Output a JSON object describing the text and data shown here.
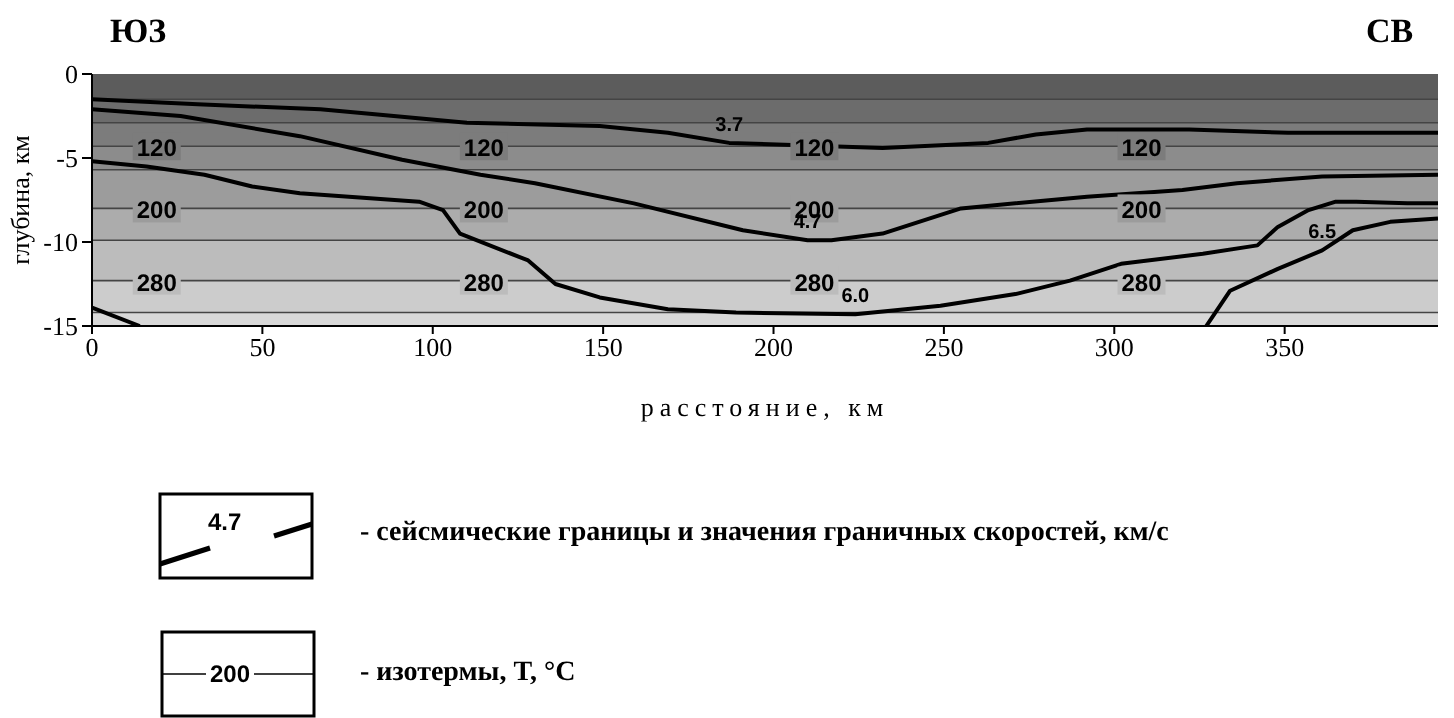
{
  "chart_data": {
    "type": "line",
    "xlabel": "расстояние, км",
    "ylabel": "глубина, км",
    "xlim": [
      0,
      395
    ],
    "ylim": [
      -15,
      0
    ],
    "xticks": [
      0,
      50,
      100,
      150,
      200,
      250,
      300,
      350
    ],
    "yticks": [
      -15,
      -10,
      -5,
      0
    ],
    "legend": "bottom",
    "marker": "none",
    "line_style": "solid",
    "series": [
      {
        "name": "3.7",
        "color": "#000000",
        "x": [
          0,
          31,
          67,
          83,
          110,
          149,
          169,
          187,
          232,
          263,
          277,
          292,
          322,
          351,
          395
        ],
        "values": [
          -1.5,
          -1.8,
          -2.1,
          -2.4,
          -2.9,
          -3.1,
          -3.5,
          -4.1,
          -4.4,
          -4.1,
          -3.6,
          -3.3,
          -3.3,
          -3.5,
          -3.5
        ]
      },
      {
        "name": "4.7",
        "color": "#000000",
        "x": [
          0,
          26,
          61,
          91,
          114,
          130,
          159,
          191,
          210,
          217,
          232,
          255,
          292,
          320,
          336,
          361,
          395
        ],
        "values": [
          -2.1,
          -2.5,
          -3.7,
          -5.1,
          -6.0,
          -6.5,
          -7.7,
          -9.3,
          -9.9,
          -9.9,
          -9.5,
          -8.0,
          -7.3,
          -6.9,
          -6.5,
          -6.1,
          -6.0
        ]
      },
      {
        "name": "6.0",
        "color": "#000000",
        "x": [
          0,
          16,
          33,
          47,
          61,
          96,
          103,
          108,
          128,
          136,
          149,
          169,
          189,
          224,
          249,
          271,
          287,
          302,
          326,
          342,
          348,
          357,
          365,
          371,
          386,
          395
        ],
        "values": [
          -5.2,
          -5.5,
          -6.0,
          -6.7,
          -7.1,
          -7.6,
          -8.1,
          -9.5,
          -11.1,
          -12.5,
          -13.3,
          -14.0,
          -14.2,
          -14.3,
          -13.8,
          -13.1,
          -12.3,
          -11.3,
          -10.7,
          -10.2,
          -9.1,
          -8.1,
          -7.6,
          -7.6,
          -7.7,
          -7.7
        ]
      },
      {
        "name": "6.5",
        "color": "#000000",
        "x": [
          327,
          334,
          348,
          361,
          370,
          381,
          395
        ],
        "values": [
          -15,
          -12.9,
          -11.6,
          -10.5,
          -9.3,
          -8.8,
          -8.6
        ]
      },
      {
        "color": "#000000",
        "x": [
          0,
          14
        ],
        "values": [
          -13.9,
          -15
        ]
      }
    ],
    "bands": [
      {
        "axis": "y",
        "from": 0,
        "to": -1.5,
        "color": "#5c5c5c"
      },
      {
        "axis": "y",
        "from": -1.5,
        "to": -2.9,
        "color": "#6c6c6c"
      },
      {
        "axis": "y",
        "from": -2.9,
        "to": -4.3,
        "color": "#7c7c7c"
      },
      {
        "axis": "y",
        "from": -4.3,
        "to": -5.7,
        "color": "#8c8c8c"
      },
      {
        "axis": "y",
        "from": -5.7,
        "to": -8.0,
        "color": "#9c9c9c"
      },
      {
        "axis": "y",
        "from": -8.0,
        "to": -9.9,
        "color": "#acacac"
      },
      {
        "axis": "y",
        "from": -9.9,
        "to": -12.3,
        "color": "#bcbcbc"
      },
      {
        "axis": "y",
        "from": -12.3,
        "to": -14.2,
        "color": "#cccccc"
      },
      {
        "axis": "y",
        "from": -14.2,
        "to": -15,
        "color": "#d8d8d8"
      }
    ],
    "ref_lines": [
      {
        "axis": "y",
        "value": -1.5,
        "color": "#444444"
      },
      {
        "axis": "y",
        "value": -2.9,
        "color": "#444444"
      },
      {
        "axis": "y",
        "value": -4.3,
        "color": "#444444"
      },
      {
        "axis": "y",
        "value": -5.7,
        "color": "#444444"
      },
      {
        "axis": "y",
        "value": -8.0,
        "color": "#444444"
      },
      {
        "axis": "y",
        "value": -9.9,
        "color": "#444444"
      },
      {
        "axis": "y",
        "value": -12.3,
        "color": "#444444"
      },
      {
        "axis": "y",
        "value": -14.2,
        "color": "#444444"
      }
    ],
    "annotations": [
      "ЮЗ",
      "СВ",
      "4.7",
      "- сейсмические границы и значения граничных скоростей, км/с",
      "200",
      "- изотермы, T, °C",
      {
        "text": "120",
        "x": 19,
        "y": -4.3
      },
      {
        "text": "120",
        "x": 115,
        "y": -4.3
      },
      {
        "text": "120",
        "x": 212,
        "y": -4.3
      },
      {
        "text": "120",
        "x": 308,
        "y": -4.3
      },
      {
        "text": "200",
        "x": 19,
        "y": -8.0
      },
      {
        "text": "200",
        "x": 115,
        "y": -8.0
      },
      {
        "text": "200",
        "x": 212,
        "y": -8.0
      },
      {
        "text": "200",
        "x": 308,
        "y": -8.0
      },
      {
        "text": "280",
        "x": 19,
        "y": -12.3
      },
      {
        "text": "280",
        "x": 115,
        "y": -12.3
      },
      {
        "text": "280",
        "x": 212,
        "y": -12.3
      },
      {
        "text": "280",
        "x": 308,
        "y": -12.3
      }
    ]
  }
}
